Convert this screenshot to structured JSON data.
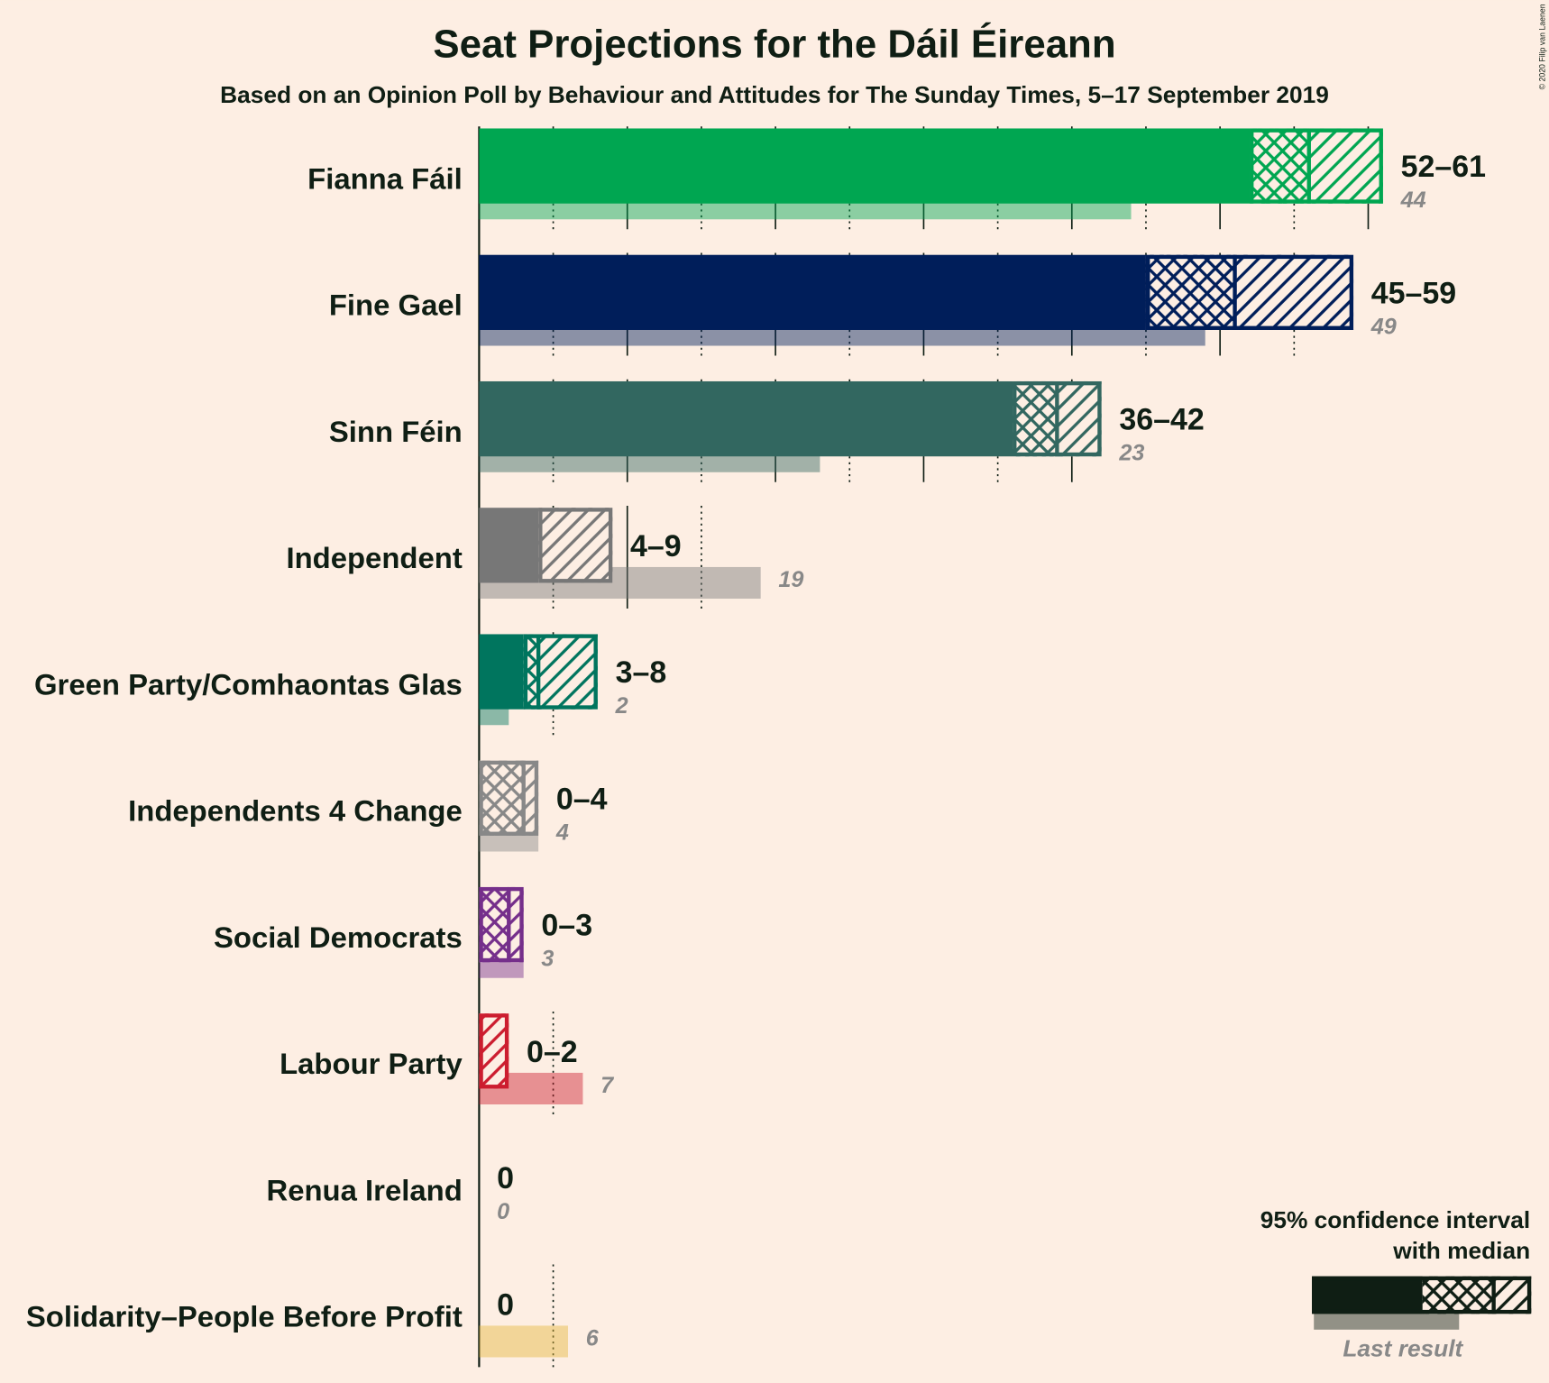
{
  "chart_data": {
    "type": "range-bar",
    "title": "Seat Projections for the Dáil Éireann",
    "subtitle": "Based on an Opinion Poll by Behaviour and Attitudes for The Sunday Times, 5–17 September 2019",
    "copyright": "© 2020 Filip van Laenen",
    "categories": [
      "Fianna Fáil",
      "Fine Gael",
      "Sinn Féin",
      "Independent",
      "Green Party/Comhaontas Glas",
      "Independents 4 Change",
      "Social Democrats",
      "Labour Party",
      "Renua Ireland",
      "Solidarity–People Before Profit"
    ],
    "colors": [
      "#00a651",
      "#001e5a",
      "#326760",
      "#777777",
      "#00755e",
      "#888888",
      "#752f8b",
      "#cc1d2f",
      "#8a2a3a",
      "#e5b53c"
    ],
    "low": [
      52,
      45,
      36,
      4,
      3,
      0,
      0,
      0,
      0,
      0
    ],
    "median": [
      56,
      51,
      39,
      4,
      4,
      3,
      2,
      0,
      0,
      0
    ],
    "high": [
      61,
      59,
      42,
      9,
      8,
      4,
      3,
      2,
      0,
      0
    ],
    "range_labels": [
      "52–61",
      "45–59",
      "36–42",
      "4–9",
      "3–8",
      "0–4",
      "0–3",
      "0–2",
      "0",
      "0"
    ],
    "last_result": [
      44,
      49,
      23,
      19,
      2,
      4,
      3,
      7,
      0,
      6
    ],
    "xlim": [
      0,
      61
    ],
    "xticks": [
      0,
      5,
      10,
      15,
      20,
      25,
      30,
      35,
      40,
      45,
      50,
      55,
      60
    ],
    "legend": {
      "title": [
        "95% confidence interval",
        "with median"
      ],
      "last_result": "Last result",
      "position": "lower right"
    }
  }
}
